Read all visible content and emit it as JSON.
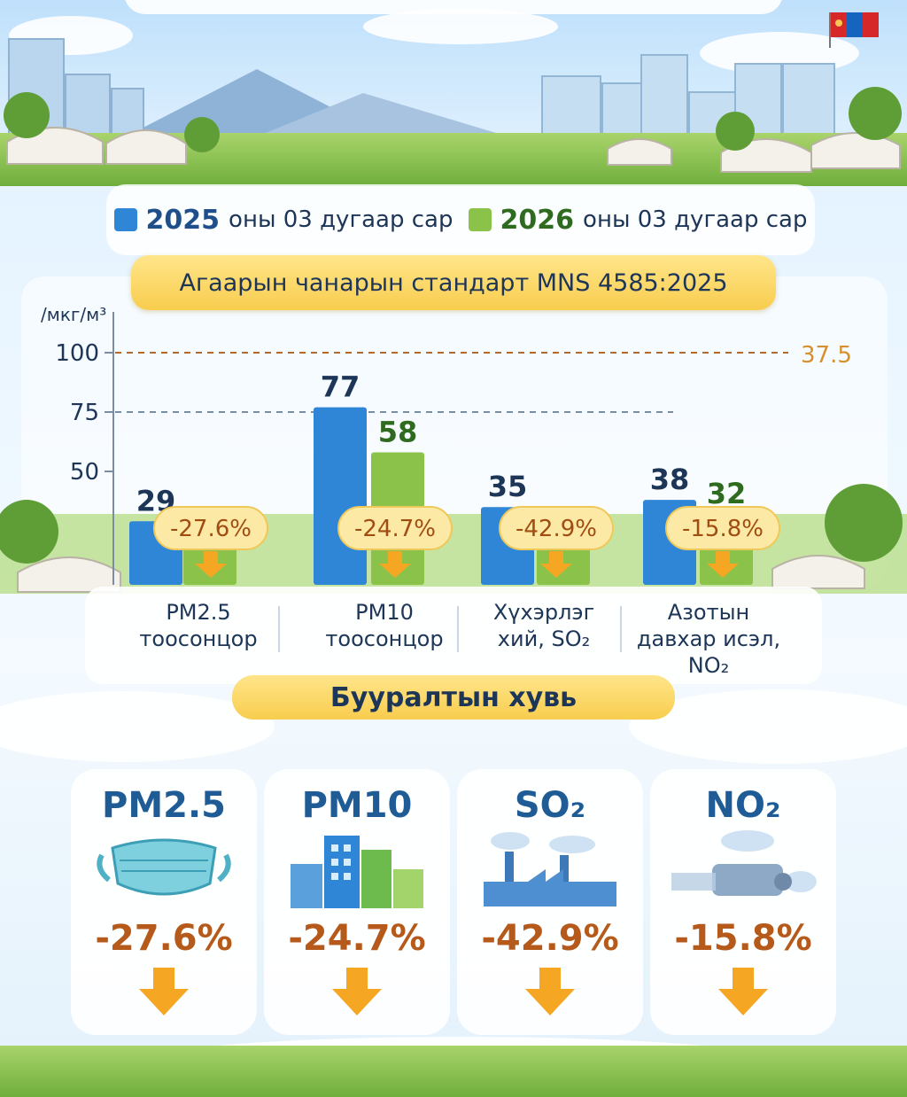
{
  "legend": [
    {
      "year": "2025",
      "rest": "оны 03 дугаар сар",
      "color": "#2f86d6"
    },
    {
      "year": "2026",
      "rest": "оны 03 дугаар сар",
      "color": "#8bc34a"
    }
  ],
  "standard_banner": "Агаарын чанарын стандарт MNS 4585:2025",
  "reduction_title": "Бууралтын хувь",
  "cards": [
    {
      "name": "PM2.5",
      "pct": "-27.6%",
      "icon": "face-mask-icon"
    },
    {
      "name": "PM10",
      "pct": "-24.7%",
      "icon": "city-buildings-icon"
    },
    {
      "name": "SO₂",
      "pct": "-42.9%",
      "icon": "factory-icon"
    },
    {
      "name": "NO₂",
      "pct": "-15.8%",
      "icon": "vehicle-exhaust-icon"
    }
  ],
  "chart_data": {
    "type": "bar",
    "ylabel": "/мкг/м³",
    "yticks": [
      "100",
      "75",
      "50"
    ],
    "reference_label": "37.5",
    "categories": [
      [
        "PM2.5",
        "тоосонцор"
      ],
      [
        "PM10",
        "тоосонцор"
      ],
      [
        "Хүхэрлэг",
        "хий, SO₂"
      ],
      [
        "Азотын",
        "давхар исэл,",
        "NO₂"
      ]
    ],
    "series": [
      {
        "name": "2025",
        "color": "#2f86d6",
        "values": [
          29,
          77,
          35,
          38
        ]
      },
      {
        "name": "2026",
        "color": "#8bc34a",
        "values": [
          21,
          58,
          20,
          32
        ]
      }
    ],
    "changes": [
      "-27.6%",
      "-24.7%",
      "-42.9%",
      "-15.8%"
    ],
    "grid": "dashed",
    "legend_position": "top"
  }
}
